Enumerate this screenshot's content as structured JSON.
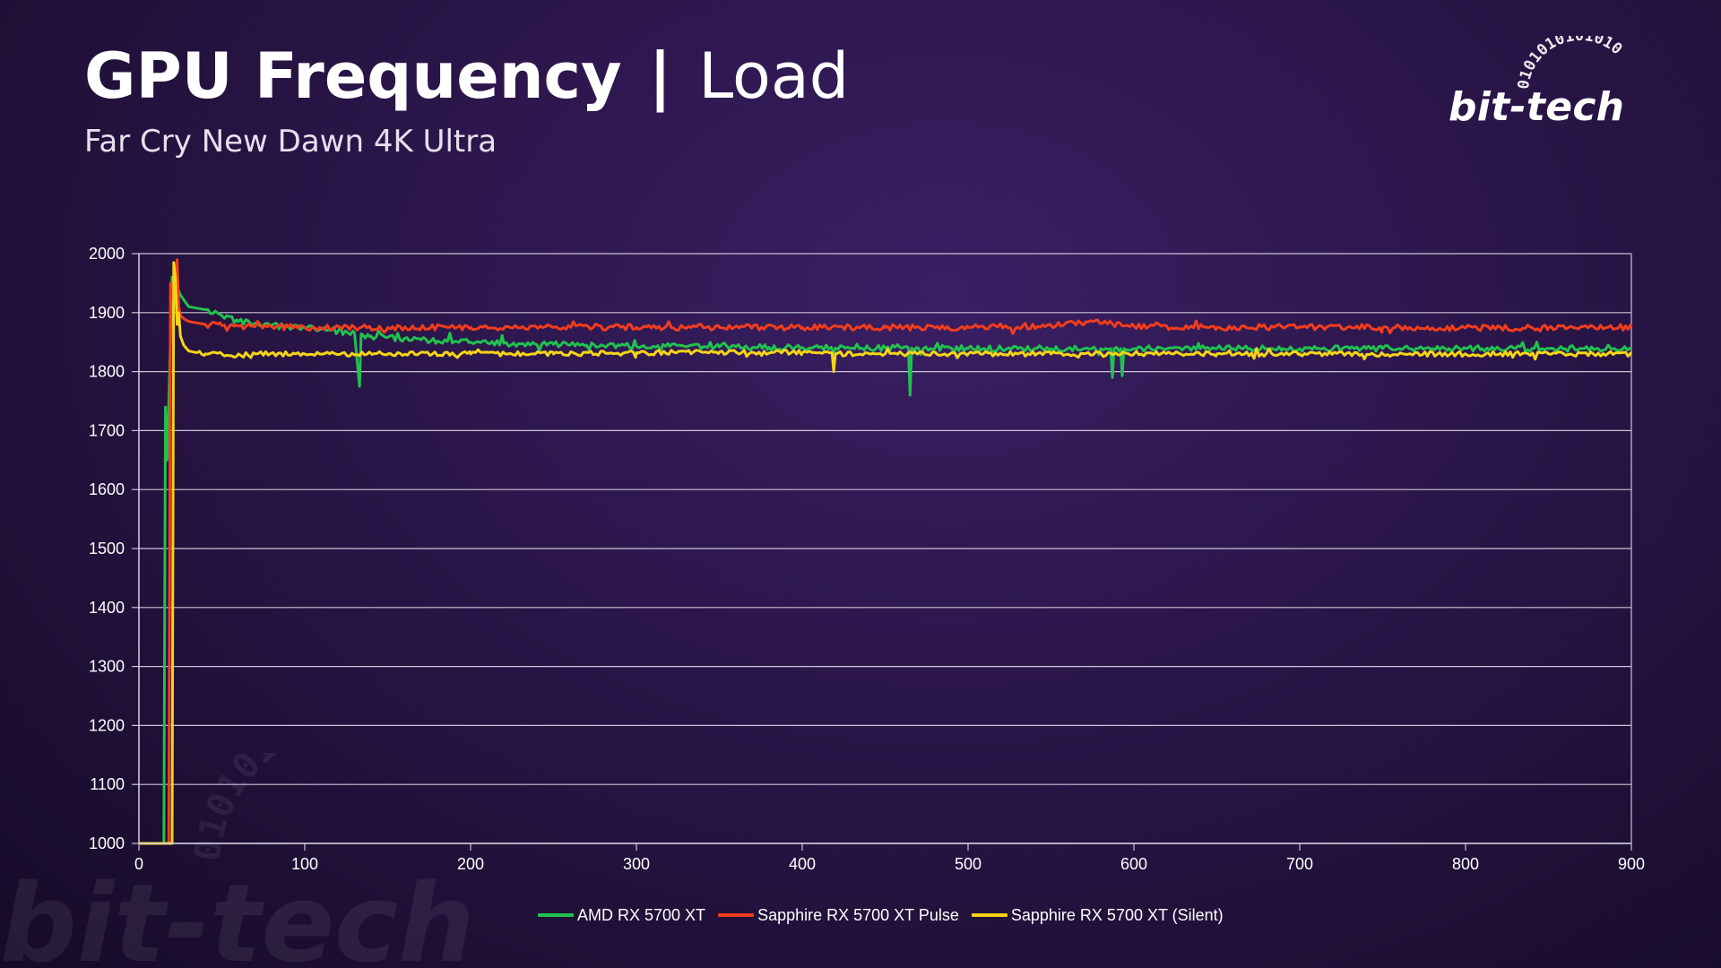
{
  "header": {
    "title_main": "GPU Frequency",
    "title_sep": "|",
    "title_sub": "Load",
    "subtitle": "Far Cry New Dawn 4K Ultra"
  },
  "logo": {
    "text": "bit-tech",
    "binary": "0101010101010"
  },
  "chart_data": {
    "type": "line",
    "title": "GPU Frequency | Load",
    "subtitle": "Far Cry New Dawn 4K Ultra",
    "xlabel": "",
    "ylabel": "",
    "xlim": [
      0,
      900
    ],
    "ylim": [
      1000,
      2000
    ],
    "x_ticks": [
      0,
      100,
      200,
      300,
      400,
      500,
      600,
      700,
      800,
      900
    ],
    "y_ticks": [
      1000,
      1100,
      1200,
      1300,
      1400,
      1500,
      1600,
      1700,
      1800,
      1900,
      2000
    ],
    "grid": "horizontal",
    "legend_position": "bottom",
    "x_sample_step": 10,
    "series": [
      {
        "name": "AMD RX 5700 XT",
        "color": "#21c14f",
        "x": [
          0,
          15,
          16,
          17,
          18,
          20,
          22,
          25,
          30,
          40,
          50,
          60,
          70,
          80,
          90,
          100,
          110,
          120,
          130,
          133,
          134,
          135,
          140,
          150,
          160,
          170,
          180,
          190,
          200,
          210,
          220,
          230,
          240,
          250,
          260,
          270,
          280,
          290,
          300,
          310,
          320,
          330,
          340,
          350,
          360,
          370,
          380,
          390,
          400,
          410,
          420,
          430,
          440,
          450,
          460,
          464,
          465,
          466,
          470,
          480,
          490,
          500,
          510,
          520,
          530,
          540,
          550,
          560,
          570,
          580,
          586,
          587,
          588,
          592,
          593,
          594,
          600,
          610,
          620,
          630,
          640,
          650,
          660,
          670,
          680,
          690,
          700,
          710,
          720,
          730,
          740,
          750,
          760,
          770,
          780,
          790,
          800,
          810,
          820,
          830,
          840,
          850,
          860,
          870,
          880,
          890,
          900
        ],
        "y": [
          1000,
          1000,
          1740,
          1650,
          1745,
          1960,
          1950,
          1930,
          1910,
          1905,
          1895,
          1885,
          1882,
          1878,
          1876,
          1874,
          1872,
          1868,
          1866,
          1775,
          1864,
          1862,
          1860,
          1858,
          1856,
          1854,
          1852,
          1851,
          1850,
          1849,
          1848,
          1847,
          1846,
          1846,
          1845,
          1845,
          1844,
          1844,
          1843,
          1843,
          1843,
          1842,
          1842,
          1842,
          1842,
          1841,
          1841,
          1841,
          1841,
          1841,
          1840,
          1840,
          1840,
          1840,
          1840,
          1840,
          1760,
          1840,
          1840,
          1840,
          1840,
          1839,
          1839,
          1839,
          1839,
          1839,
          1839,
          1839,
          1839,
          1839,
          1839,
          1790,
          1839,
          1839,
          1793,
          1839,
          1839,
          1839,
          1839,
          1839,
          1839,
          1839,
          1839,
          1839,
          1839,
          1839,
          1839,
          1839,
          1839,
          1839,
          1839,
          1839,
          1839,
          1839,
          1839,
          1839,
          1839,
          1839,
          1839,
          1839,
          1839,
          1839,
          1839,
          1839,
          1839,
          1839,
          1839
        ]
      },
      {
        "name": "Sapphire RX 5700 XT Pulse",
        "color": "#f23d1c",
        "x": [
          0,
          18,
          19,
          21,
          23,
          24,
          25,
          27,
          30,
          40,
          50,
          60,
          70,
          80,
          90,
          100,
          150,
          200,
          250,
          300,
          350,
          400,
          450,
          500,
          550,
          575,
          600,
          650,
          700,
          750,
          800,
          850,
          900
        ],
        "y": [
          1000,
          1000,
          1950,
          1920,
          1990,
          1910,
          1895,
          1890,
          1885,
          1880,
          1878,
          1877,
          1876,
          1876,
          1876,
          1875,
          1875,
          1875,
          1875,
          1875,
          1875,
          1875,
          1875,
          1875,
          1878,
          1885,
          1877,
          1875,
          1876,
          1875,
          1874,
          1874,
          1875
        ]
      },
      {
        "name": "Sapphire RX 5700 XT (Silent)",
        "color": "#f5d417",
        "x": [
          0,
          20,
          21,
          22,
          23,
          24,
          25,
          27,
          30,
          35,
          40,
          50,
          60,
          100,
          150,
          200,
          250,
          300,
          350,
          400,
          418,
          419,
          420,
          450,
          500,
          550,
          600,
          650,
          700,
          750,
          800,
          850,
          900
        ],
        "y": [
          1000,
          1000,
          1985,
          1960,
          1880,
          1900,
          1860,
          1845,
          1835,
          1832,
          1830,
          1830,
          1830,
          1830,
          1830,
          1830,
          1830,
          1832,
          1833,
          1832,
          1832,
          1800,
          1830,
          1830,
          1830,
          1830,
          1830,
          1830,
          1830,
          1830,
          1830,
          1830,
          1830
        ]
      }
    ]
  }
}
